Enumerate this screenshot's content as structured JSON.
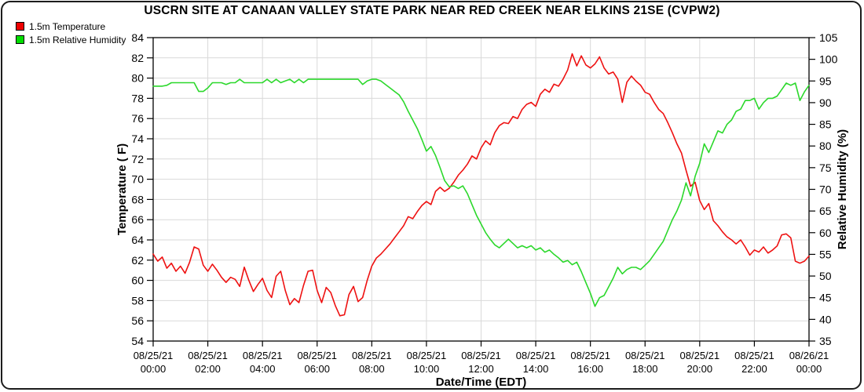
{
  "title": "USCRN SITE AT CANAAN VALLEY STATE PARK NEAR RED CREEK NEAR ELKINS 21SE (CVPW2)",
  "legend": {
    "items": [
      {
        "label": "1.5m Temperature",
        "color": "#ee0000"
      },
      {
        "label": "1.5m Relative Humidity",
        "color": "#00dd00"
      }
    ]
  },
  "chart_data": {
    "type": "line",
    "title": "USCRN SITE AT CANAAN VALLEY STATE PARK NEAR RED CREEK NEAR ELKINS 21SE (CVPW2)",
    "xlabel": "Date/Time (EDT)",
    "ylabel_left": "Temperature ( F)",
    "ylabel_right": "Relative Humidity (%)",
    "grid_color": "#d9d9d9",
    "legend_position": "top-left",
    "x_range_minutes": [
      0,
      1440
    ],
    "x_step_minutes": 10,
    "x_ticks": [
      {
        "minutes": 0,
        "date": "08/25/21",
        "time": "00:00"
      },
      {
        "minutes": 120,
        "date": "08/25/21",
        "time": "02:00"
      },
      {
        "minutes": 240,
        "date": "08/25/21",
        "time": "04:00"
      },
      {
        "minutes": 360,
        "date": "08/25/21",
        "time": "06:00"
      },
      {
        "minutes": 480,
        "date": "08/25/21",
        "time": "08:00"
      },
      {
        "minutes": 600,
        "date": "08/25/21",
        "time": "10:00"
      },
      {
        "minutes": 720,
        "date": "08/25/21",
        "time": "12:00"
      },
      {
        "minutes": 840,
        "date": "08/25/21",
        "time": "14:00"
      },
      {
        "minutes": 960,
        "date": "08/25/21",
        "time": "16:00"
      },
      {
        "minutes": 1080,
        "date": "08/25/21",
        "time": "18:00"
      },
      {
        "minutes": 1200,
        "date": "08/25/21",
        "time": "20:00"
      },
      {
        "minutes": 1320,
        "date": "08/25/21",
        "time": "22:00"
      },
      {
        "minutes": 1440,
        "date": "08/26/21",
        "time": "00:00"
      }
    ],
    "y_left": {
      "label": "Temperature ( F)",
      "min": 54,
      "max": 84,
      "ticks": [
        54,
        56,
        58,
        60,
        62,
        64,
        66,
        68,
        70,
        72,
        74,
        76,
        78,
        80,
        82,
        84
      ]
    },
    "y_right": {
      "label": "Relative Humidity (%)",
      "min": 35,
      "max": 105,
      "ticks": [
        35,
        40,
        45,
        50,
        55,
        60,
        65,
        70,
        75,
        80,
        85,
        90,
        95,
        100,
        105
      ]
    },
    "series": [
      {
        "name": "1.5m Temperature",
        "axis": "left",
        "unit": "F",
        "color": "#ee1111",
        "values": [
          62.6,
          61.9,
          62.3,
          61.2,
          61.7,
          60.9,
          61.4,
          60.7,
          61.8,
          63.3,
          63.1,
          61.5,
          60.9,
          61.6,
          61.0,
          60.3,
          59.8,
          60.3,
          60.1,
          59.4,
          61.3,
          60.0,
          58.9,
          59.6,
          60.2,
          59.0,
          58.3,
          60.4,
          60.9,
          59.0,
          57.6,
          58.2,
          57.8,
          59.5,
          60.9,
          61.0,
          59.0,
          57.8,
          59.3,
          58.8,
          57.5,
          56.5,
          56.6,
          58.6,
          59.4,
          57.9,
          58.3,
          60.0,
          61.4,
          62.2,
          62.6,
          63.1,
          63.6,
          64.2,
          64.8,
          65.4,
          66.3,
          66.1,
          66.8,
          67.4,
          67.8,
          67.5,
          68.8,
          69.2,
          68.8,
          69.1,
          69.7,
          70.4,
          70.9,
          71.5,
          72.3,
          72.0,
          73.1,
          73.8,
          73.4,
          74.6,
          75.3,
          75.6,
          75.5,
          76.2,
          76.0,
          76.9,
          77.4,
          77.6,
          77.2,
          78.4,
          78.9,
          78.6,
          79.4,
          79.2,
          79.9,
          80.8,
          82.4,
          81.2,
          82.2,
          81.3,
          81.0,
          81.4,
          82.1,
          81.0,
          80.4,
          80.6,
          79.9,
          77.6,
          79.6,
          80.2,
          79.7,
          79.3,
          78.6,
          78.4,
          77.6,
          76.9,
          76.5,
          75.6,
          74.6,
          73.5,
          72.6,
          70.9,
          69.3,
          69.7,
          67.9,
          67.0,
          67.6,
          65.9,
          65.4,
          64.8,
          64.3,
          64.0,
          63.6,
          64.0,
          63.3,
          62.5,
          63.0,
          62.8,
          63.3,
          62.7,
          63.0,
          63.4,
          64.5,
          64.6,
          64.2,
          61.9,
          61.7,
          61.9,
          62.4
        ]
      },
      {
        "name": "1.5m Relative Humidity",
        "axis": "right",
        "unit": "%",
        "color": "#2bd82b",
        "values": [
          93.8,
          93.8,
          93.8,
          94.0,
          94.6,
          94.6,
          94.6,
          94.6,
          94.6,
          94.6,
          92.6,
          92.6,
          93.4,
          94.6,
          94.6,
          94.6,
          94.2,
          94.6,
          94.6,
          95.4,
          94.6,
          94.6,
          94.6,
          94.6,
          94.6,
          95.4,
          94.6,
          95.4,
          94.6,
          95.0,
          95.4,
          94.6,
          95.4,
          94.6,
          95.4,
          95.4,
          95.4,
          95.4,
          95.4,
          95.4,
          95.4,
          95.4,
          95.4,
          95.4,
          95.4,
          95.4,
          94.2,
          95.0,
          95.4,
          95.4,
          95.0,
          94.2,
          93.4,
          92.6,
          91.8,
          90.2,
          88.0,
          86.0,
          84.0,
          81.5,
          78.8,
          79.9,
          77.8,
          75.0,
          72.0,
          70.6,
          70.8,
          70.2,
          70.8,
          69.0,
          66.5,
          64.0,
          62.0,
          60.0,
          58.5,
          57.2,
          56.5,
          57.5,
          58.5,
          57.5,
          56.5,
          57.0,
          56.5,
          57.0,
          56.0,
          56.5,
          55.5,
          56.0,
          55.0,
          54.2,
          53.2,
          53.6,
          52.6,
          53.2,
          51.0,
          48.5,
          46.0,
          43.0,
          45.0,
          45.5,
          47.5,
          49.5,
          52.0,
          50.5,
          51.5,
          52.0,
          52.0,
          51.5,
          52.5,
          53.5,
          55.0,
          56.5,
          58.0,
          60.5,
          63.0,
          65.0,
          67.5,
          71.5,
          68.5,
          73.0,
          76.0,
          80.5,
          78.5,
          81.0,
          83.5,
          83.0,
          85.0,
          86.0,
          88.0,
          88.5,
          90.5,
          90.5,
          91.0,
          88.5,
          90.0,
          91.0,
          91.0,
          91.5,
          93.0,
          94.5,
          94.0,
          94.5,
          90.5,
          92.5,
          94.0
        ]
      }
    ]
  }
}
